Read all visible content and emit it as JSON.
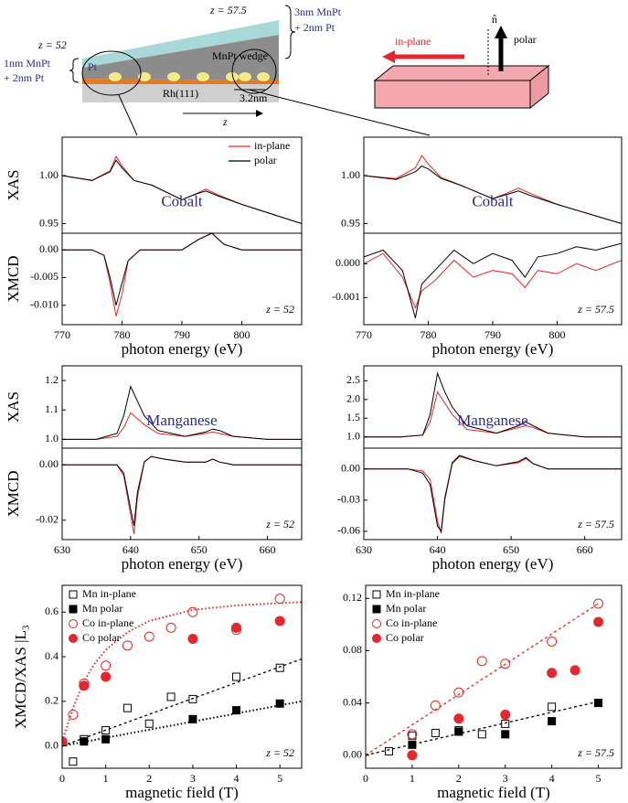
{
  "schematic": {
    "z_right": "z = 57.5",
    "thick_1": "3nm MnPt",
    "thick_2": "+ 2nm Pt",
    "z_left": "z = 52",
    "thin_1": "1nm MnPt",
    "thin_2": "+ 2nm Pt",
    "cap": "Pt",
    "wedge": "MnPt wedge",
    "substrate": "Rh(111)",
    "size": "3.2nm",
    "axis": "z",
    "normal": "n̂",
    "in_plane": "in-plane",
    "polar": "polar"
  },
  "chart_data": [
    {
      "type": "line",
      "ylabel": "XAS",
      "label": "Cobalt",
      "legend": "upper right",
      "xlim": [
        770,
        810
      ],
      "ylim": [
        0.94,
        1.04
      ],
      "yticks": [
        0.95,
        {
          "value": 1.0,
          "label": "1.00"
        }
      ],
      "series": [
        {
          "name": "in-plane",
          "color": "#e8262b",
          "x": [
            770,
            775,
            778,
            779,
            780,
            782,
            785,
            790,
            792,
            794,
            796,
            800,
            805,
            810
          ],
          "values": [
            1.0,
            0.995,
            1.005,
            1.02,
            1.01,
            0.995,
            0.99,
            0.975,
            0.98,
            0.986,
            0.98,
            0.97,
            0.96,
            0.95
          ]
        },
        {
          "name": "polar",
          "color": "#000000",
          "x": [
            770,
            775,
            778,
            779,
            780,
            782,
            785,
            790,
            792,
            794,
            796,
            800,
            805,
            810
          ],
          "values": [
            1.0,
            0.995,
            1.004,
            1.016,
            1.008,
            0.995,
            0.99,
            0.975,
            0.98,
            0.984,
            0.979,
            0.97,
            0.96,
            0.95
          ]
        }
      ]
    },
    {
      "type": "line",
      "ylabel": "XMCD",
      "xlabel": "photon energy (eV)",
      "note": "z = 52",
      "xlim": [
        770,
        810
      ],
      "ylim": [
        -0.0135,
        0.003
      ],
      "xticks": [
        770,
        780,
        790,
        800
      ],
      "yticks": [
        {
          "value": 0,
          "label": "0.00"
        },
        -0.005,
        {
          "value": -0.01,
          "label": "-0.010"
        }
      ],
      "series": [
        {
          "color": "#e8262b",
          "x": [
            770,
            775,
            777,
            778,
            779,
            780,
            781,
            783,
            790,
            793,
            795,
            797,
            800,
            805,
            810
          ],
          "values": [
            0,
            0,
            -0.001,
            -0.006,
            -0.012,
            -0.008,
            -0.002,
            0,
            0,
            0.002,
            0.003,
            0.001,
            0,
            0,
            0
          ]
        },
        {
          "color": "#000000",
          "x": [
            770,
            775,
            777,
            778,
            779,
            780,
            781,
            783,
            790,
            793,
            795,
            797,
            800,
            805,
            810
          ],
          "values": [
            0,
            0,
            -0.001,
            -0.005,
            -0.01,
            -0.006,
            -0.002,
            0,
            0,
            0.002,
            0.003,
            0.001,
            0,
            0,
            0
          ]
        }
      ]
    },
    {
      "type": "line",
      "label": "Cobalt",
      "xlim": [
        770,
        810
      ],
      "ylim": [
        0.94,
        1.04
      ],
      "yticks": [
        0.95,
        {
          "value": 1.0,
          "label": "1.00"
        }
      ],
      "series": [
        {
          "color": "#e8262b",
          "x": [
            770,
            775,
            778,
            779,
            780,
            782,
            785,
            790,
            792,
            794,
            796,
            800,
            805,
            810
          ],
          "values": [
            1.0,
            0.997,
            1.008,
            1.021,
            1.012,
            0.998,
            0.99,
            0.976,
            0.981,
            0.987,
            0.981,
            0.97,
            0.96,
            0.95
          ]
        },
        {
          "color": "#000000",
          "x": [
            770,
            775,
            778,
            779,
            780,
            782,
            785,
            790,
            792,
            794,
            796,
            800,
            805,
            810
          ],
          "values": [
            1.0,
            0.996,
            1.004,
            1.01,
            1.007,
            0.997,
            0.99,
            0.976,
            0.98,
            0.984,
            0.979,
            0.97,
            0.96,
            0.95
          ]
        }
      ]
    },
    {
      "type": "line",
      "xlabel": "photon energy (eV)",
      "note": "z = 57.5",
      "xlim": [
        770,
        810
      ],
      "ylim": [
        -0.0018,
        0.0009
      ],
      "xticks": [
        770,
        780,
        790,
        800
      ],
      "yticks": [
        {
          "value": 0,
          "label": "0.000"
        },
        -0.001
      ],
      "series": [
        {
          "color": "#e8262b",
          "x": [
            770,
            773,
            776,
            778,
            779,
            781,
            784,
            787,
            790,
            793,
            795,
            797,
            800,
            803,
            806,
            810
          ],
          "values": [
            0,
            0.0003,
            -0.0004,
            -0.0013,
            -0.0008,
            -0.0005,
            0.0001,
            -0.0004,
            -0.0002,
            -0.0003,
            -0.0007,
            -0.0002,
            -0.0003,
            0,
            -0.0002,
            0.0001
          ]
        },
        {
          "color": "#000000",
          "x": [
            770,
            773,
            776,
            778,
            779,
            781,
            784,
            787,
            790,
            793,
            795,
            797,
            800,
            803,
            806,
            810
          ],
          "values": [
            0.0002,
            0.0004,
            -0.0002,
            -0.0016,
            -0.0006,
            -0.0002,
            0.0004,
            0,
            0.0003,
            0.0001,
            -0.0004,
            0.0002,
            0.0003,
            0.0005,
            0.0004,
            0.0006
          ]
        }
      ]
    },
    {
      "type": "line",
      "ylabel": "XAS",
      "label": "Manganese",
      "xlim": [
        630,
        665
      ],
      "ylim": [
        0.97,
        1.25
      ],
      "yticks": [
        {
          "value": 1.0,
          "label": "1.0"
        },
        1.1,
        1.2
      ],
      "series": [
        {
          "color": "#e8262b",
          "x": [
            630,
            635,
            638,
            639,
            640,
            641,
            642,
            644,
            648,
            651,
            652,
            653,
            655,
            660,
            665
          ],
          "values": [
            1.0,
            1.0,
            1.01,
            1.04,
            1.09,
            1.07,
            1.05,
            1.02,
            1.01,
            1.02,
            1.025,
            1.02,
            1.01,
            1.0,
            1.0
          ]
        },
        {
          "color": "#000000",
          "x": [
            630,
            635,
            638,
            639,
            640,
            641,
            642,
            644,
            648,
            651,
            652,
            653,
            655,
            660,
            665
          ],
          "values": [
            1.0,
            1.0,
            1.02,
            1.08,
            1.18,
            1.13,
            1.08,
            1.03,
            1.01,
            1.025,
            1.035,
            1.03,
            1.01,
            1.0,
            1.0
          ]
        }
      ]
    },
    {
      "type": "line",
      "ylabel": "XMCD",
      "xlabel": "photon energy (eV)",
      "note": "z = 52",
      "xlim": [
        630,
        665
      ],
      "ylim": [
        -0.027,
        0.006
      ],
      "xticks": [
        630,
        640,
        650,
        660
      ],
      "yticks": [
        {
          "value": 0,
          "label": "0.00"
        },
        -0.02
      ],
      "series": [
        {
          "color": "#e8262b",
          "x": [
            630,
            636,
            638,
            639,
            640,
            640.5,
            641,
            642,
            643,
            645,
            648,
            651,
            652,
            653,
            655,
            660,
            665
          ],
          "values": [
            0,
            0,
            0,
            -0.004,
            -0.018,
            -0.025,
            -0.012,
            0.001,
            0.003,
            0.002,
            0.001,
            0.001,
            0.002,
            0.001,
            0,
            0,
            0
          ]
        },
        {
          "color": "#000000",
          "x": [
            630,
            636,
            638,
            639,
            640,
            640.5,
            641,
            642,
            643,
            645,
            648,
            651,
            652,
            653,
            655,
            660,
            665
          ],
          "values": [
            0,
            0,
            0,
            -0.003,
            -0.016,
            -0.022,
            -0.01,
            0.001,
            0.003,
            0.002,
            0.001,
            0.001,
            0.002,
            0.001,
            0,
            0,
            0
          ]
        }
      ]
    },
    {
      "type": "line",
      "label": "Manganese",
      "xlim": [
        630,
        665
      ],
      "ylim": [
        0.7,
        2.9
      ],
      "yticks": [
        {
          "value": 1.0,
          "label": "1.0"
        },
        1.5,
        {
          "value": 2.0,
          "label": "2.0"
        },
        2.5
      ],
      "series": [
        {
          "color": "#e8262b",
          "x": [
            630,
            635,
            638,
            639,
            640,
            641,
            642,
            644,
            648,
            651,
            652,
            653,
            655,
            660,
            665
          ],
          "values": [
            1.0,
            1.0,
            1.05,
            1.4,
            2.2,
            1.9,
            1.6,
            1.2,
            1.1,
            1.25,
            1.3,
            1.25,
            1.1,
            1.0,
            1.0
          ]
        },
        {
          "color": "#000000",
          "x": [
            630,
            635,
            638,
            639,
            640,
            641,
            642,
            644,
            648,
            651,
            652,
            653,
            655,
            660,
            665
          ],
          "values": [
            1.0,
            1.0,
            1.05,
            1.6,
            2.7,
            2.2,
            1.8,
            1.3,
            1.1,
            1.3,
            1.4,
            1.3,
            1.1,
            1.0,
            1.0
          ]
        }
      ]
    },
    {
      "type": "line",
      "xlabel": "photon energy (eV)",
      "note": "z = 57.5",
      "xlim": [
        630,
        665
      ],
      "ylim": [
        -0.068,
        0.02
      ],
      "xticks": [
        630,
        640,
        650,
        660
      ],
      "yticks": [
        {
          "value": 0,
          "label": "0.00"
        },
        -0.03,
        -0.06
      ],
      "series": [
        {
          "color": "#e8262b",
          "x": [
            630,
            636,
            638,
            639,
            640,
            640.5,
            641,
            642,
            643,
            645,
            648,
            651,
            652,
            653,
            655,
            660,
            665
          ],
          "values": [
            0,
            0,
            -0.002,
            -0.01,
            -0.05,
            -0.062,
            -0.03,
            0.005,
            0.012,
            0.008,
            0.003,
            0.006,
            0.01,
            0.005,
            0,
            0,
            0
          ]
        },
        {
          "color": "#000000",
          "x": [
            630,
            636,
            638,
            639,
            640,
            640.5,
            641,
            642,
            643,
            645,
            648,
            651,
            652,
            653,
            655,
            660,
            665
          ],
          "values": [
            0,
            0,
            -0.004,
            -0.015,
            -0.055,
            -0.06,
            -0.028,
            0.006,
            0.013,
            0.008,
            0.003,
            0.007,
            0.011,
            0.005,
            0,
            0,
            0
          ]
        }
      ]
    },
    {
      "type": "scatter",
      "ylabel": "XMCD/XAS |L₃",
      "xlabel": "magnetic field (T)",
      "note": "z = 52",
      "legend": "upper left",
      "xlim": [
        0,
        5.5
      ],
      "ylim": [
        -0.1,
        0.72
      ],
      "xticks": [
        0,
        1,
        2,
        3,
        4,
        5
      ],
      "yticks": [
        {
          "value": 0,
          "label": "0.0"
        },
        0.2,
        0.4,
        0.6
      ],
      "series": [
        {
          "name": "Mn in-plane",
          "color": "#000000",
          "marker": "open-square",
          "x": [
            0.25,
            0.5,
            1,
            1.5,
            2,
            2.5,
            3,
            4,
            5
          ],
          "values": [
            -0.07,
            0.03,
            0.07,
            0.17,
            0.1,
            0.22,
            0.21,
            0.31,
            0.35
          ]
        },
        {
          "name": "Mn polar",
          "color": "#000000",
          "marker": "filled-square",
          "x": [
            0.5,
            1,
            3,
            4,
            5
          ],
          "values": [
            0.02,
            0.03,
            0.12,
            0.16,
            0.19
          ]
        },
        {
          "name": "Co in-plane",
          "color": "#e8262b",
          "marker": "open-circle",
          "x": [
            0,
            0.25,
            0.5,
            1,
            1.5,
            2,
            2.5,
            3,
            4,
            5
          ],
          "values": [
            0.02,
            0.14,
            0.28,
            0.36,
            0.45,
            0.49,
            0.53,
            0.6,
            0.52,
            0.66
          ]
        },
        {
          "name": "Co polar",
          "color": "#e8262b",
          "marker": "filled-circle",
          "x": [
            0,
            0.5,
            1,
            3,
            4,
            5
          ],
          "values": [
            0.02,
            0.27,
            0.31,
            0.48,
            0.53,
            0.56
          ]
        },
        {
          "color": "#e8262b",
          "style": "dotted",
          "x": [
            0,
            0.25,
            0.5,
            0.75,
            1,
            1.5,
            2,
            3,
            4,
            5.5
          ],
          "values": [
            0.02,
            0.17,
            0.29,
            0.37,
            0.43,
            0.51,
            0.56,
            0.61,
            0.63,
            0.645
          ]
        },
        {
          "color": "#000000",
          "style": "dashed",
          "x": [
            0,
            5.5
          ],
          "values": [
            0,
            0.39
          ]
        },
        {
          "color": "#000000",
          "style": "dotted",
          "x": [
            0,
            5.5
          ],
          "values": [
            0,
            0.2
          ]
        }
      ]
    },
    {
      "type": "scatter",
      "xlabel": "magnetic field (T)",
      "note": "z = 57.5",
      "legend": "upper left",
      "xlim": [
        0,
        5.5
      ],
      "ylim": [
        -0.01,
        0.13
      ],
      "xticks": [
        0,
        1,
        2,
        3,
        4,
        5
      ],
      "yticks": [
        {
          "value": 0,
          "label": "0.00"
        },
        0.04,
        0.08,
        0.12
      ],
      "series": [
        {
          "name": "Mn in-plane",
          "color": "#000000",
          "marker": "open-square",
          "x": [
            0.5,
            1,
            1.5,
            2,
            2.5,
            3,
            4,
            5
          ],
          "values": [
            0.003,
            0.015,
            0.017,
            0.019,
            0.016,
            0.024,
            0.037,
            0.04
          ]
        },
        {
          "name": "Mn polar",
          "color": "#000000",
          "marker": "filled-square",
          "x": [
            1,
            2,
            3,
            4,
            5
          ],
          "values": [
            0.008,
            0.018,
            0.016,
            0.026,
            0.04
          ]
        },
        {
          "name": "Co in-plane",
          "color": "#e8262b",
          "marker": "open-circle",
          "x": [
            1,
            1.5,
            2,
            2.5,
            3,
            4,
            5
          ],
          "values": [
            0.016,
            0.038,
            0.048,
            0.072,
            0.07,
            0.087,
            0.116
          ]
        },
        {
          "name": "Co polar",
          "color": "#e8262b",
          "marker": "filled-circle",
          "x": [
            1,
            2,
            3,
            4,
            4.5,
            5
          ],
          "values": [
            0,
            0.028,
            0.031,
            0.063,
            0.065,
            0.102
          ]
        },
        {
          "color": "#e8262b",
          "style": "dashed",
          "x": [
            0,
            5
          ],
          "values": [
            0,
            0.116
          ]
        },
        {
          "color": "#000000",
          "style": "dashed",
          "x": [
            0,
            5
          ],
          "values": [
            0,
            0.041
          ]
        }
      ]
    }
  ]
}
